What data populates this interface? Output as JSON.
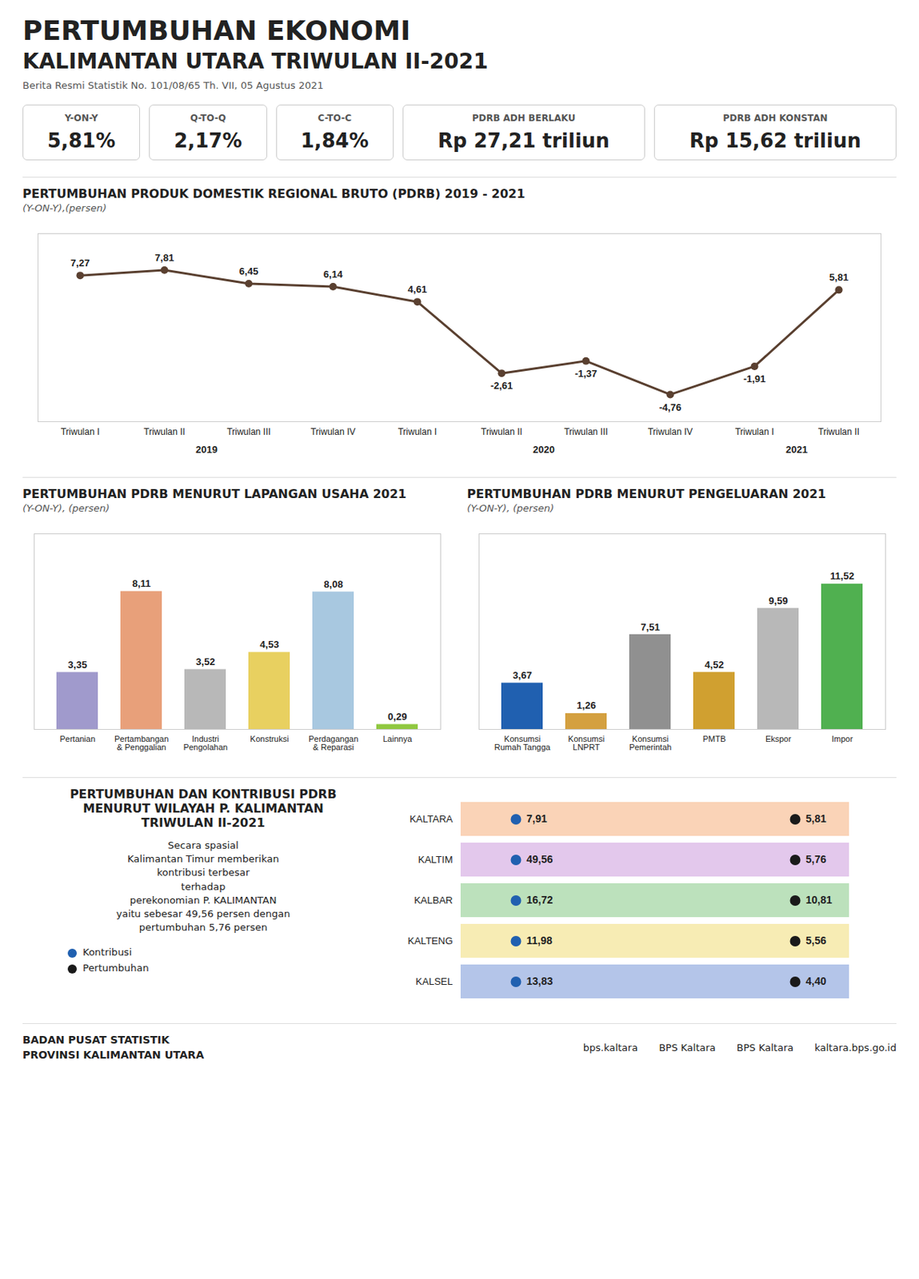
{
  "title": "PERTUMBUHAN EKONOMI\nKALIMANTAN UTARA TRIWULAN II-2021",
  "subtitle": "Berita Resmi Statistik No. 101/08/65 Th. VII, 05 Agustus 2021",
  "chart_data": [
    {
      "type": "stats",
      "categories": [
        "Y-ON-Y",
        "Q-TO-Q",
        "C-TO-C",
        "PDRB ADH BERLAKU",
        "PDRB ADH KONSTAN"
      ],
      "values": [
        5.81,
        2.17,
        1.84,
        27.21,
        15.62
      ],
      "value_labels": [
        "5,81%",
        "2,17%",
        "1,84%",
        "Rp 27,21 triliun",
        "Rp 15,62 triliun"
      ]
    },
    {
      "type": "line",
      "title": "PERTUMBUHAN PRODUK DOMESTIK REGIONAL BRUTO (PDRB) 2019 - 2021",
      "subtitle": "(Y-ON-Y),(persen)",
      "categories": [
        "Triwulan I",
        "Triwulan II",
        "Triwulan III",
        "Triwulan IV",
        "Triwulan I",
        "Triwulan II",
        "Triwulan III",
        "Triwulan IV",
        "Triwulan I",
        "Triwulan II"
      ],
      "x_groups": [
        {
          "label": "2019",
          "from": 0,
          "to": 3
        },
        {
          "label": "2020",
          "from": 4,
          "to": 7
        },
        {
          "label": "2021",
          "from": 8,
          "to": 9
        }
      ],
      "values": [
        7.27,
        7.81,
        6.45,
        6.14,
        4.61,
        -2.61,
        -1.37,
        -4.76,
        -1.91,
        5.81
      ],
      "value_labels": [
        "7,27",
        "7,81",
        "6,45",
        "6,14",
        "4,61",
        "-2,61",
        "-1,37",
        "-4,76",
        "-1,91",
        "5,81"
      ],
      "data_labels": true,
      "color": "#5a4030",
      "ylim": [
        -7.5,
        11.5
      ],
      "tick_labels": "x",
      "grid": false
    },
    {
      "type": "bar",
      "title": "PERTUMBUHAN PDRB MENURUT LAPANGAN USAHA 2021",
      "subtitle": "(Y-ON-Y), (persen)",
      "categories": [
        "Pertanian",
        "Pertambangan\n& Penggalian",
        "Industri\nPengolahan",
        "Konstruksi",
        "Perdagangan\n& Reparasi",
        "Lainnya"
      ],
      "values": [
        3.35,
        8.11,
        3.52,
        4.53,
        8.08,
        0.29
      ],
      "value_labels": [
        "3,35",
        "8,11",
        "3,52",
        "4,53",
        "8,08",
        "0,29"
      ],
      "data_labels": true,
      "colors": [
        "#a09acc",
        "#e8a07a",
        "#b8b8b8",
        "#e8d060",
        "#a8c8e0",
        "#90c840"
      ],
      "ylim": [
        0,
        11.5
      ],
      "tick_labels": "x",
      "grid": false
    },
    {
      "type": "bar",
      "title": "PERTUMBUHAN PDRB MENURUT PENGELUARAN 2021",
      "subtitle": "(Y-ON-Y), (persen)",
      "categories": [
        "Konsumsi\nRumah Tangga",
        "Konsumsi\nLNPRT",
        "Konsumsi\nPemerintah",
        "PMTB",
        "Ekspor",
        "Impor"
      ],
      "values": [
        3.67,
        1.26,
        7.51,
        4.52,
        9.59,
        11.52
      ],
      "value_labels": [
        "3,67",
        "1,26",
        "7,51",
        "4,52",
        "9,59",
        "11,52"
      ],
      "data_labels": true,
      "colors": [
        "#2060b0",
        "#d4a040",
        "#909090",
        "#d0a030",
        "#b8b8b8",
        "#50b050"
      ],
      "ylim": [
        0,
        15.5
      ],
      "tick_labels": "x",
      "grid": false
    },
    {
      "type": "table",
      "title": "PERTUMBUHAN DAN KONTRIBUSI PDRB\nMENURUT WILAYAH P. KALIMANTAN\nTRIWULAN II-2021",
      "annotations": [
        "Secara spasial\nKalimantan Timur memberikan\nkontribusi terbesar\nterhadap\nperekonomian P. KALIMANTAN\nyaitu sebesar 49,56 persen dengan\npertumbuhan 5,76 persen"
      ],
      "categories": [
        "KALTARA",
        "KALTIM",
        "KALBAR",
        "KALTENG",
        "KALSEL"
      ],
      "colors": [
        "#f08030",
        "#b060c8",
        "#40a840",
        "#e8c828",
        "#2858c0"
      ],
      "series": [
        {
          "name": "Kontribusi",
          "color": "#2060b0",
          "values": [
            7.91,
            49.56,
            16.72,
            11.98,
            13.83
          ],
          "value_labels": [
            "7,91",
            "49,56",
            "16,72",
            "11,98",
            "13,83"
          ]
        },
        {
          "name": "Pertumbuhan",
          "color": "#1a1a1a",
          "values": [
            5.81,
            5.76,
            10.81,
            5.56,
            4.4
          ],
          "value_labels": [
            "5,81",
            "5,76",
            "10,81",
            "5,56",
            "4,40"
          ]
        }
      ],
      "data_labels": true,
      "legend": "left",
      "tick_labels": "y"
    }
  ],
  "footer": [
    "BADAN PUSAT STATISTIK",
    "PROVINSI KALIMANTAN UTARA"
  ],
  "social": [
    "bps.kaltara",
    "BPS Kaltara",
    "BPS Kaltara",
    "kaltara.bps.go.id"
  ]
}
